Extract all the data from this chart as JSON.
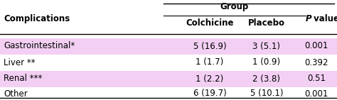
{
  "title_col": "Complications",
  "group_header": "Group",
  "col2": "Colchicine",
  "col3": "Placebo",
  "col4_italic": "P",
  "col4_normal": " value",
  "rows": [
    {
      "label": "Gastrointestinal*",
      "col2": "5 (16.9)",
      "col3": "3 (5.1)",
      "col4": "0.001",
      "shaded": true
    },
    {
      "label": "Liver **",
      "col2": "1 (1.7)",
      "col3": "1 (0.9)",
      "col4": "0.392",
      "shaded": false
    },
    {
      "label": "Renal ***",
      "col2": "1 (2.2)",
      "col3": "2 (3.8)",
      "col4": "0.51",
      "shaded": true
    },
    {
      "label": "Other",
      "col2": "6 (19.7)",
      "col3": "5 (10.1)",
      "col4": "0.001",
      "shaded": false
    }
  ],
  "shade_color": "#f3d0f3",
  "font_size": 8.5,
  "fig_width": 4.74,
  "fig_height": 1.41,
  "dpi": 100
}
